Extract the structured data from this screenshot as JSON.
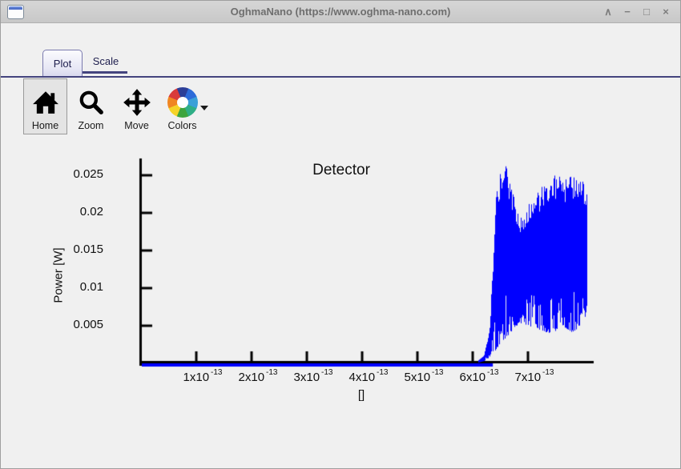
{
  "window": {
    "title": "OghmaNano (https://www.oghma-nano.com)",
    "controls": [
      {
        "name": "shade",
        "glyph": "∧"
      },
      {
        "name": "minimize",
        "glyph": "−"
      },
      {
        "name": "maximize",
        "glyph": "□"
      },
      {
        "name": "close",
        "glyph": "×"
      }
    ]
  },
  "tabs": [
    {
      "label": "Plot",
      "selected": true
    },
    {
      "label": "Scale",
      "selected": false
    }
  ],
  "toolbar": {
    "buttons": [
      {
        "label": "Home",
        "icon": "home-icon",
        "active": true
      },
      {
        "label": "Zoom",
        "icon": "zoom-icon",
        "active": false
      },
      {
        "label": "Move",
        "icon": "move-icon",
        "active": false
      },
      {
        "label": "Colors",
        "icon": "colors-icon",
        "active": false,
        "has_dropdown": true
      }
    ]
  },
  "chart_data": {
    "type": "line",
    "title": "Detector",
    "xlabel": "[]",
    "ylabel": "Power [W]",
    "line_color": "#0000ff",
    "axis_color": "#000000",
    "background": "#f0f0f0",
    "xlim_1e13": [
      0,
      8.2
    ],
    "ylim": [
      0,
      0.0272
    ],
    "grid": false,
    "legend": "none",
    "x_ticks": [
      {
        "base": "1x10",
        "sup": "-13",
        "value_1e13": 1
      },
      {
        "base": "2x10",
        "sup": "-13",
        "value_1e13": 2
      },
      {
        "base": "3x10",
        "sup": "-13",
        "value_1e13": 3
      },
      {
        "base": "4x10",
        "sup": "-13",
        "value_1e13": 4
      },
      {
        "base": "5x10",
        "sup": "-13",
        "value_1e13": 5
      },
      {
        "base": "6x10",
        "sup": "-13",
        "value_1e13": 6
      },
      {
        "base": "7x10",
        "sup": "-13",
        "value_1e13": 7
      }
    ],
    "y_ticks": [
      {
        "label": "0.005",
        "value": 0.005
      },
      {
        "label": "0.01",
        "value": 0.01
      },
      {
        "label": "0.015",
        "value": 0.015
      },
      {
        "label": "0.02",
        "value": 0.02
      },
      {
        "label": "0.025",
        "value": 0.025
      }
    ],
    "zero_line_range_1e13": [
      0,
      6.35
    ],
    "signal_range_1e13": [
      6.1,
      8.06
    ],
    "peak_power_w": 0.0266,
    "envelope": {
      "t_1e13": [
        6.1,
        6.2,
        6.3,
        6.36,
        6.42,
        6.48,
        6.53,
        6.6,
        6.68,
        6.76,
        6.84,
        6.9,
        7.0,
        7.1,
        7.2,
        7.3,
        7.4,
        7.5,
        7.6,
        7.7,
        7.8,
        7.9,
        7.98,
        8.06
      ],
      "upper": [
        0.0004,
        0.001,
        0.0045,
        0.013,
        0.0225,
        0.0252,
        0.0266,
        0.0262,
        0.0243,
        0.0215,
        0.0194,
        0.0198,
        0.0212,
        0.0222,
        0.023,
        0.024,
        0.0247,
        0.0251,
        0.0247,
        0.0244,
        0.0251,
        0.0247,
        0.0242,
        0.0238
      ],
      "lower": [
        0.0001,
        0.0003,
        0.0008,
        0.0012,
        0.0018,
        0.0025,
        0.0028,
        0.0035,
        0.004,
        0.0048,
        0.0053,
        0.0052,
        0.005,
        0.0047,
        0.0044,
        0.0042,
        0.004,
        0.0043,
        0.005,
        0.0046,
        0.0041,
        0.0047,
        0.0052,
        0.0058
      ]
    }
  }
}
